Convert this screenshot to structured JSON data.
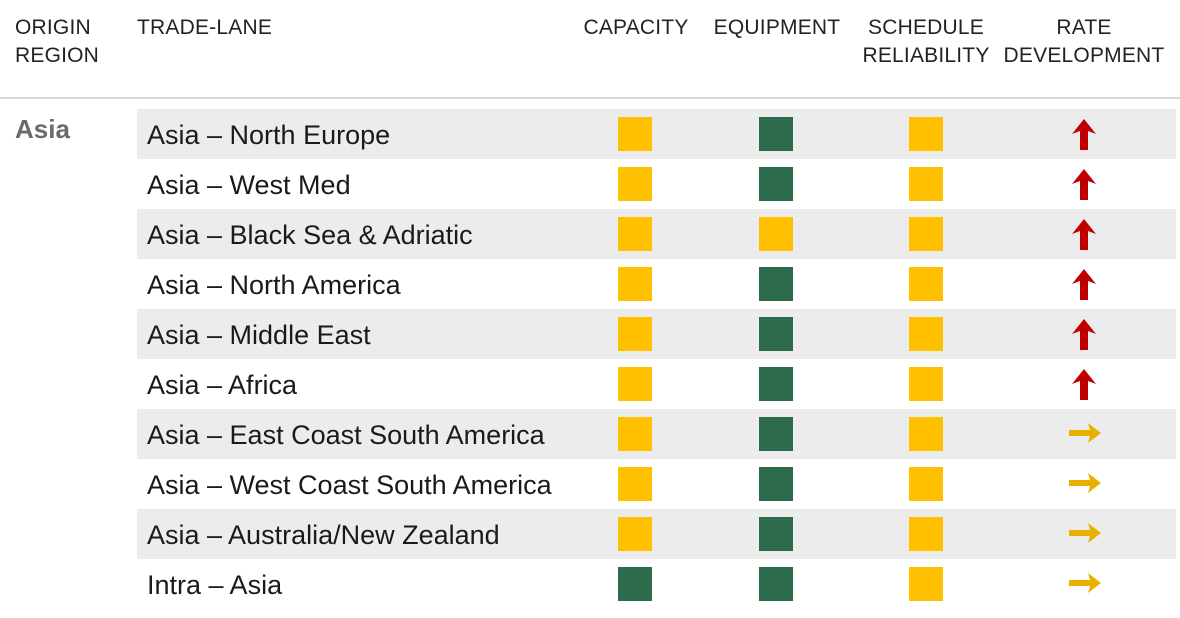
{
  "header": {
    "origin_line1": "ORIGIN",
    "origin_line2": "REGION",
    "trade_lane": "TRADE-LANE",
    "capacity": "CAPACITY",
    "equipment": "EQUIPMENT",
    "schedule_line1": "SCHEDULE",
    "schedule_line2": "RELIABILITY",
    "rate_line1": "RATE",
    "rate_line2": "DEVELOPMENT"
  },
  "region": "Asia",
  "colors": {
    "yellow": "#ffc000",
    "green": "#2e6b4c",
    "arrow_up": "#c00000",
    "arrow_right": "#e8b000"
  },
  "rows": [
    {
      "lane": "Asia – North Europe",
      "capacity": "yellow",
      "equipment": "green",
      "schedule": "yellow",
      "rate": "up"
    },
    {
      "lane": "Asia – West Med",
      "capacity": "yellow",
      "equipment": "green",
      "schedule": "yellow",
      "rate": "up"
    },
    {
      "lane": "Asia – Black Sea & Adriatic",
      "capacity": "yellow",
      "equipment": "yellow",
      "schedule": "yellow",
      "rate": "up"
    },
    {
      "lane": "Asia – North America",
      "capacity": "yellow",
      "equipment": "green",
      "schedule": "yellow",
      "rate": "up"
    },
    {
      "lane": "Asia – Middle East",
      "capacity": "yellow",
      "equipment": "green",
      "schedule": "yellow",
      "rate": "up"
    },
    {
      "lane": "Asia – Africa",
      "capacity": "yellow",
      "equipment": "green",
      "schedule": "yellow",
      "rate": "up"
    },
    {
      "lane": "Asia – East Coast South America",
      "capacity": "yellow",
      "equipment": "green",
      "schedule": "yellow",
      "rate": "right"
    },
    {
      "lane": "Asia – West Coast South America",
      "capacity": "yellow",
      "equipment": "green",
      "schedule": "yellow",
      "rate": "right"
    },
    {
      "lane": "Asia – Australia/New Zealand",
      "capacity": "yellow",
      "equipment": "green",
      "schedule": "yellow",
      "rate": "right"
    },
    {
      "lane": "Intra – Asia",
      "capacity": "green",
      "equipment": "green",
      "schedule": "yellow",
      "rate": "right"
    }
  ]
}
